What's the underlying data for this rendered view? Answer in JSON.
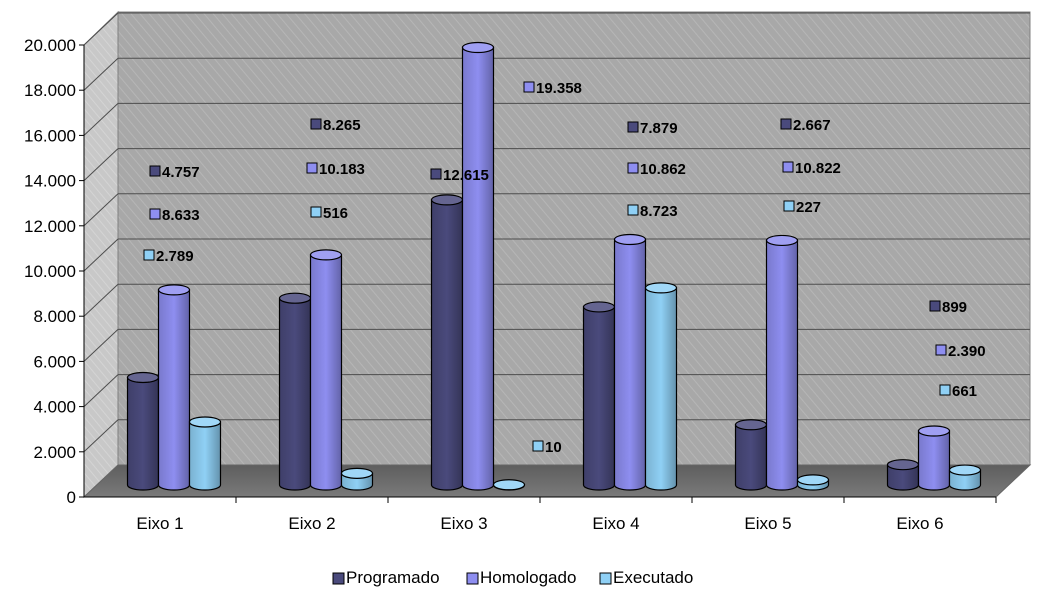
{
  "chart_data": {
    "type": "bar",
    "title": "",
    "xlabel": "",
    "ylabel": "",
    "ylim": [
      0,
      20000
    ],
    "y_ticks": [
      "0",
      "2.000",
      "4.000",
      "6.000",
      "8.000",
      "10.000",
      "12.000",
      "14.000",
      "16.000",
      "18.000",
      "20.000"
    ],
    "categories": [
      "Eixo 1",
      "Eixo 2",
      "Eixo 3",
      "Eixo 4",
      "Eixo 5",
      "Eixo 6"
    ],
    "grid": true,
    "style": "3d-cylinder",
    "legend_position": "bottom",
    "series": [
      {
        "name": "Programado",
        "color": "#4a4a7c",
        "values": [
          4757,
          8265,
          12615,
          7879,
          2667,
          899
        ],
        "labels": [
          "4.757",
          "8.265",
          "12.615",
          "7.879",
          "2.667",
          "899"
        ]
      },
      {
        "name": "Homologado",
        "color": "#8e8ef0",
        "values": [
          8633,
          10183,
          19358,
          10862,
          10822,
          2390
        ],
        "labels": [
          "8.633",
          "10.183",
          "19.358",
          "10.862",
          "10.822",
          "2.390"
        ]
      },
      {
        "name": "Executado",
        "color": "#8fd0f5",
        "values": [
          2789,
          516,
          10,
          8723,
          227,
          661
        ],
        "labels": [
          "2.789",
          "516",
          "10",
          "8.723",
          "227",
          "661"
        ]
      }
    ]
  }
}
